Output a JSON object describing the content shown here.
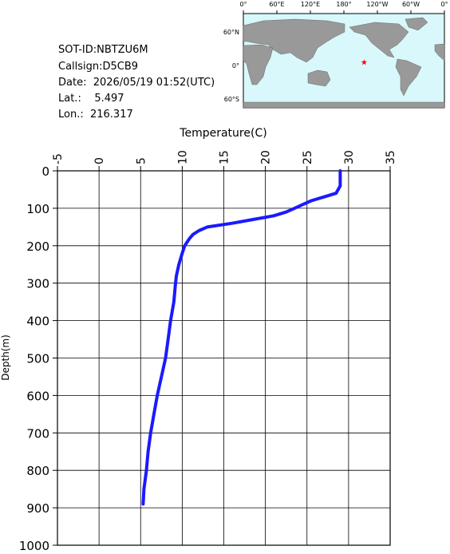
{
  "info": {
    "sot_id": "SOT-ID:NBTZU6M",
    "callsign": "Callsign:D5CB9",
    "date": "Date:  2026/05/19 01:52(UTC)",
    "lat": "Lat.:    5.497",
    "lon": "Lon.:  216.317"
  },
  "map": {
    "lon_ticks": [
      {
        "value": 0,
        "label": "0°"
      },
      {
        "value": 60,
        "label": "60°E"
      },
      {
        "value": 120,
        "label": "120°E"
      },
      {
        "value": 180,
        "label": "180°"
      },
      {
        "value": 240,
        "label": "120°W"
      },
      {
        "value": 300,
        "label": "60°W"
      },
      {
        "value": 360,
        "label": "0°"
      }
    ],
    "lat_ticks": [
      {
        "value": 60,
        "label": "60°N"
      },
      {
        "value": 0,
        "label": "0°"
      },
      {
        "value": -60,
        "label": "60°S"
      }
    ],
    "marker": {
      "lat": 5.497,
      "lon": 216.317,
      "color": "#ff0000"
    }
  },
  "chart_data": {
    "type": "line",
    "x_label": "Temperature(C)",
    "y_label": "Depth(m)",
    "x": [
      29.0,
      29.0,
      29.0,
      28.5,
      27.0,
      25.5,
      24.5,
      23.5,
      22.5,
      21.0,
      18.5,
      16.0,
      13.0,
      12.0,
      11.3,
      10.9,
      10.6,
      10.3,
      10.0,
      9.6,
      9.3,
      9.2,
      9.0,
      8.6,
      8.3,
      8.0,
      7.5,
      7.0,
      6.6,
      6.2,
      5.9,
      5.7,
      5.4,
      5.3
    ],
    "values": [
      0,
      20,
      40,
      60,
      70,
      80,
      90,
      100,
      110,
      120,
      130,
      140,
      150,
      160,
      170,
      180,
      190,
      200,
      220,
      250,
      280,
      300,
      350,
      400,
      450,
      500,
      550,
      600,
      650,
      700,
      750,
      800,
      850,
      890
    ],
    "color": "#1a1aff",
    "xlim": [
      -5,
      35
    ],
    "xticks": [
      -5,
      0,
      5,
      10,
      15,
      20,
      25,
      30,
      35
    ],
    "ylim": [
      0,
      1000
    ],
    "yticks": [
      0,
      100,
      200,
      300,
      400,
      500,
      600,
      700,
      800,
      900,
      1000
    ],
    "y_inverted": true,
    "grid": true
  }
}
